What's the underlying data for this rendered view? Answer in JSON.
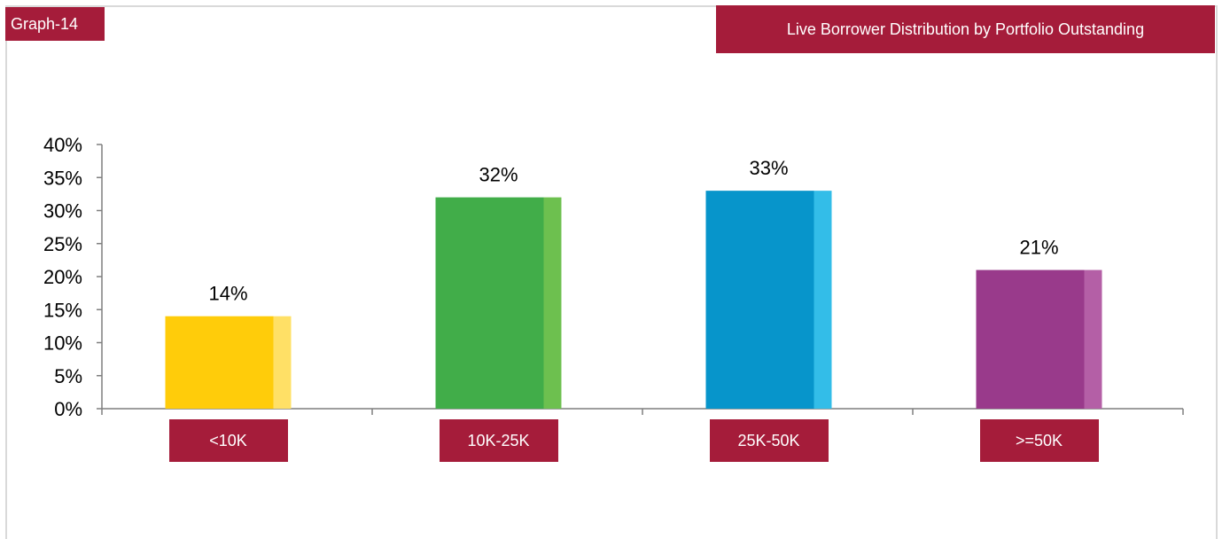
{
  "graph_tag": "Graph-14",
  "chart_data": {
    "type": "bar",
    "title": "Live Borrower Distribution by Portfolio Outstanding",
    "categories": [
      "<10K",
      "10K-25K",
      "25K-50K",
      ">=50K"
    ],
    "values": [
      14,
      32,
      33,
      21
    ],
    "data_labels": [
      "14%",
      "32%",
      "33%",
      "21%"
    ],
    "ylim": [
      0,
      40
    ],
    "yticks": [
      "0%",
      "5%",
      "10%",
      "15%",
      "20%",
      "25%",
      "30%",
      "35%",
      "40%"
    ],
    "grid": false,
    "legend": "none",
    "colors": [
      {
        "main": "#ffcc0a",
        "side": "#ffe066"
      },
      {
        "main": "#41ad49",
        "side": "#6dc04f"
      },
      {
        "main": "#0795cb",
        "side": "#33bde8"
      },
      {
        "main": "#993a8b",
        "side": "#b45fa6"
      }
    ]
  }
}
